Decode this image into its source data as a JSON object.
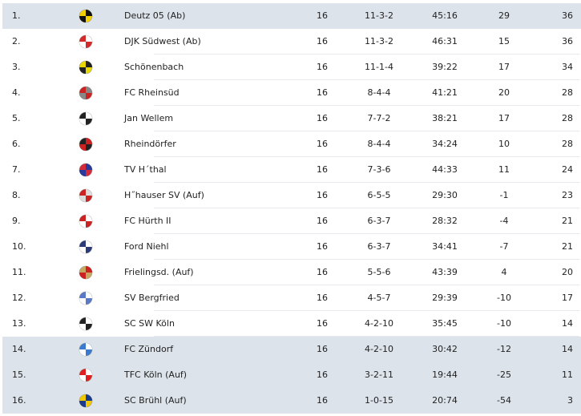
{
  "table": {
    "rows": [
      {
        "rank": "1.",
        "team": "Deutz 05 (Ab)",
        "played": "16",
        "record": "11-3-2",
        "goals": "45:16",
        "diff": "29",
        "points": "36",
        "logo": "deutz-crest-icon",
        "colors": [
          "#f5d000",
          "#111111"
        ],
        "highlight": true
      },
      {
        "rank": "2.",
        "team": "DJK Südwest (Ab)",
        "played": "16",
        "record": "11-3-2",
        "goals": "46:31",
        "diff": "15",
        "points": "36",
        "logo": "djk-suedwest-logo-icon",
        "colors": [
          "#d42a2a",
          "#ffffff"
        ],
        "highlight": false
      },
      {
        "rank": "3.",
        "team": "Schönenbach",
        "played": "16",
        "record": "11-1-4",
        "goals": "39:22",
        "diff": "17",
        "points": "34",
        "logo": "schoenenbach-crest-icon",
        "colors": [
          "#e8d800",
          "#222222"
        ],
        "highlight": false
      },
      {
        "rank": "4.",
        "team": "FC Rheinsüd",
        "played": "16",
        "record": "8-4-4",
        "goals": "41:21",
        "diff": "20",
        "points": "28",
        "logo": "rheinsued-logo-icon",
        "colors": [
          "#cc2222",
          "#888888"
        ],
        "highlight": false
      },
      {
        "rank": "5.",
        "team": "Jan Wellem",
        "played": "16",
        "record": "7-7-2",
        "goals": "38:21",
        "diff": "17",
        "points": "28",
        "logo": "jan-wellem-crest-icon",
        "colors": [
          "#222222",
          "#ffffff"
        ],
        "highlight": false
      },
      {
        "rank": "6.",
        "team": "Rheindörfer",
        "played": "16",
        "record": "8-4-4",
        "goals": "34:24",
        "diff": "10",
        "points": "28",
        "logo": "rheindoerfer-crest-icon",
        "colors": [
          "#222222",
          "#cc2222"
        ],
        "highlight": false
      },
      {
        "rank": "7.",
        "team": "TV H´thal",
        "played": "16",
        "record": "7-3-6",
        "goals": "44:33",
        "diff": "11",
        "points": "24",
        "logo": "tv-hthal-crest-icon",
        "colors": [
          "#d42a3a",
          "#2a3a9a"
        ],
        "highlight": false
      },
      {
        "rank": "8.",
        "team": "H˝hauser SV (Auf)",
        "played": "16",
        "record": "6-5-5",
        "goals": "29:30",
        "diff": "-1",
        "points": "23",
        "logo": "hhauser-crest-icon",
        "colors": [
          "#cc2222",
          "#dddddd"
        ],
        "highlight": false
      },
      {
        "rank": "9.",
        "team": "FC Hürth II",
        "played": "16",
        "record": "6-3-7",
        "goals": "28:32",
        "diff": "-4",
        "points": "21",
        "logo": "huerth-crest-icon",
        "colors": [
          "#cc2222",
          "#ffffff"
        ],
        "highlight": false
      },
      {
        "rank": "10.",
        "team": "Ford Niehl",
        "played": "16",
        "record": "6-3-7",
        "goals": "34:41",
        "diff": "-7",
        "points": "21",
        "logo": "ford-niehl-crest-icon",
        "colors": [
          "#2a3a7a",
          "#ffffff"
        ],
        "highlight": false
      },
      {
        "rank": "11.",
        "team": "Frielingsd. (Auf)",
        "played": "16",
        "record": "5-5-6",
        "goals": "43:39",
        "diff": "4",
        "points": "20",
        "logo": "frielingsdorf-crest-icon",
        "colors": [
          "#c8a860",
          "#cc2222"
        ],
        "highlight": false
      },
      {
        "rank": "12.",
        "team": "SV Bergfried",
        "played": "16",
        "record": "4-5-7",
        "goals": "29:39",
        "diff": "-10",
        "points": "17",
        "logo": "bergfried-crest-icon",
        "colors": [
          "#5a7ac8",
          "#ffffff"
        ],
        "highlight": false
      },
      {
        "rank": "13.",
        "team": "SC SW Köln",
        "played": "16",
        "record": "4-2-10",
        "goals": "35:45",
        "diff": "-10",
        "points": "14",
        "logo": "sc-sw-koeln-crest-icon",
        "colors": [
          "#222222",
          "#ffffff"
        ],
        "highlight": false
      },
      {
        "rank": "14.",
        "team": "FC Zündorf",
        "played": "16",
        "record": "4-2-10",
        "goals": "30:42",
        "diff": "-12",
        "points": "14",
        "logo": "zuendorf-crest-icon",
        "colors": [
          "#3a7ad0",
          "#ffffff"
        ],
        "highlight": true
      },
      {
        "rank": "15.",
        "team": "TFC Köln (Auf)",
        "played": "16",
        "record": "3-2-11",
        "goals": "19:44",
        "diff": "-25",
        "points": "11",
        "logo": "tfc-koeln-crest-icon",
        "colors": [
          "#e02020",
          "#ffffff"
        ],
        "highlight": true
      },
      {
        "rank": "16.",
        "team": "SC Brühl (Auf)",
        "played": "16",
        "record": "1-0-15",
        "goals": "20:74",
        "diff": "-54",
        "points": "3",
        "logo": "sc-bruehl-crest-icon",
        "colors": [
          "#f0c800",
          "#1a3a8a"
        ],
        "highlight": true
      }
    ],
    "highlight_color": "#dde3ea"
  }
}
